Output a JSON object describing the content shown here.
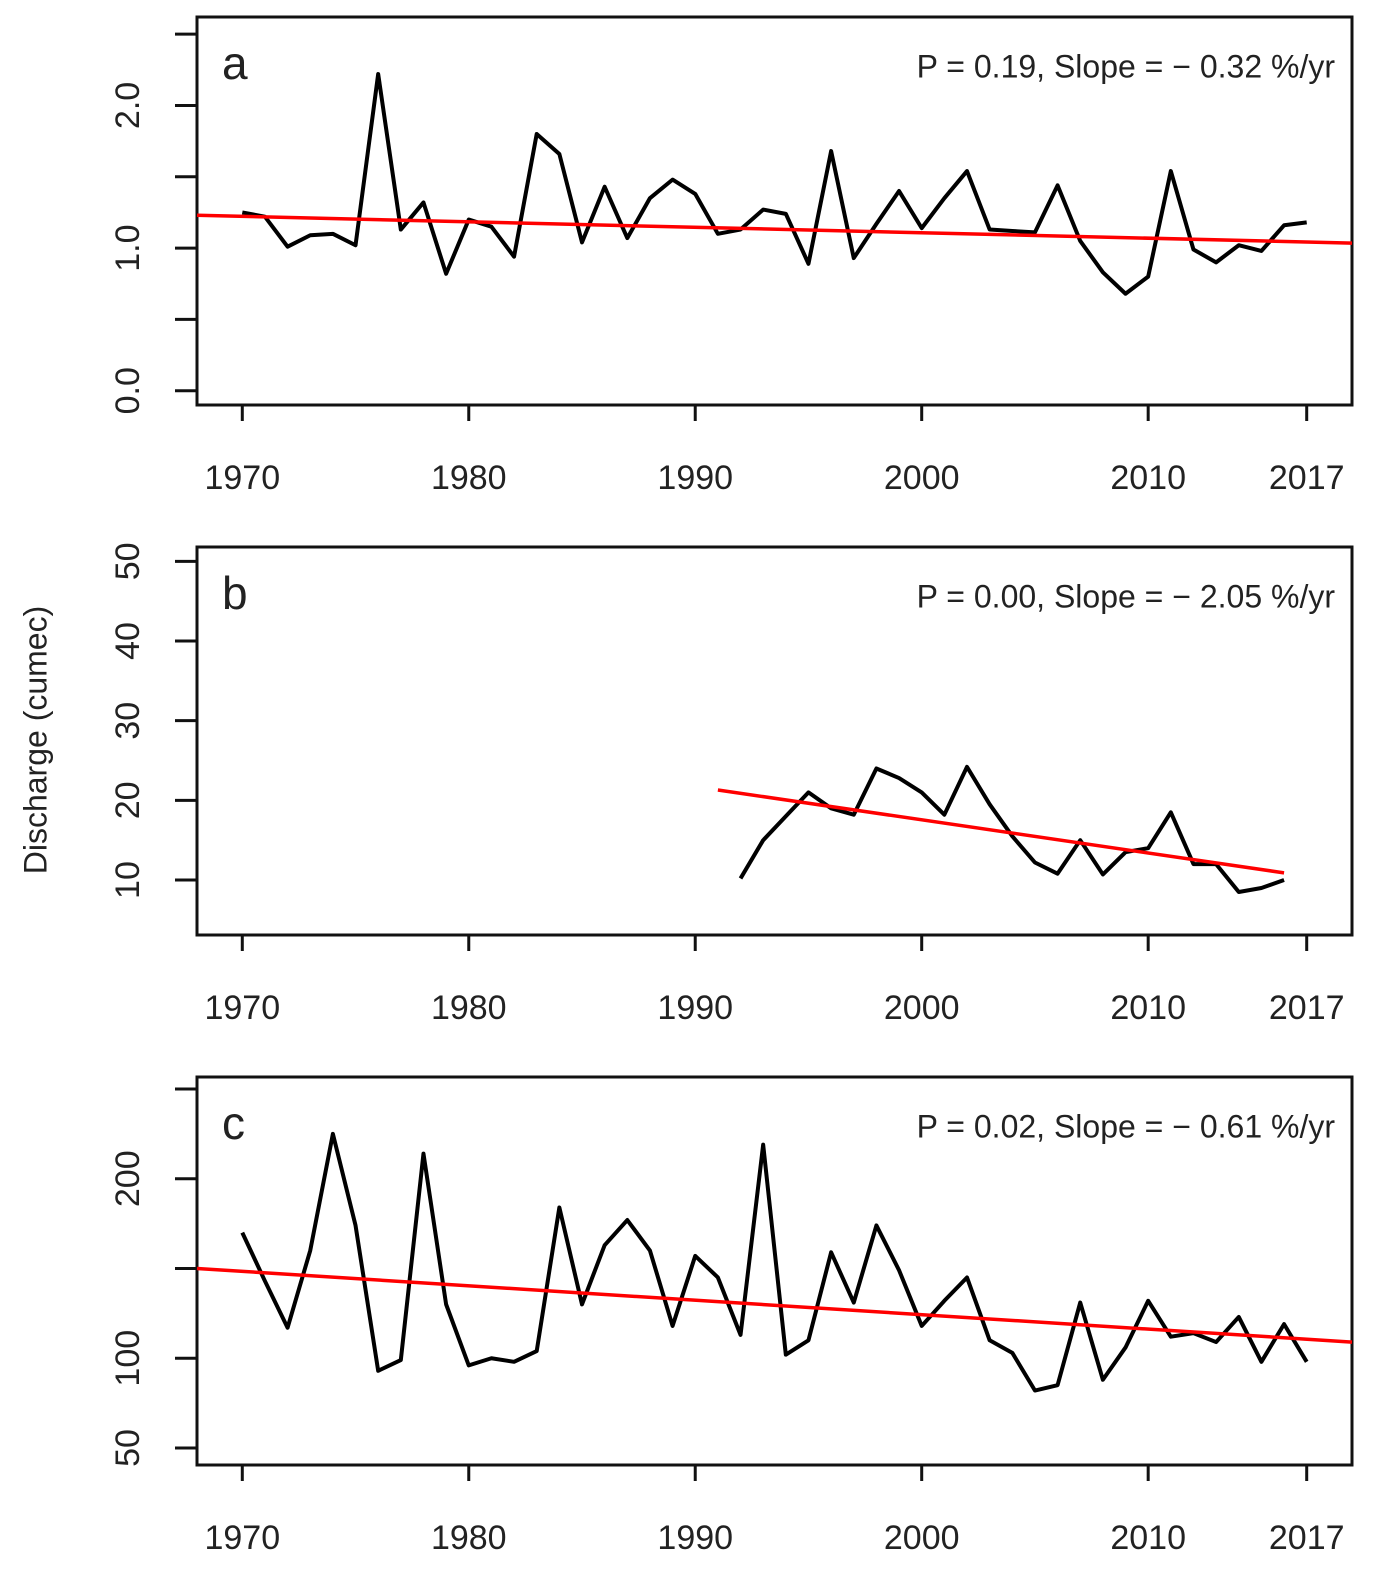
{
  "chart_data": [
    {
      "type": "line",
      "panel_label": "a",
      "annotation": "P = 0.19, Slope = − 0.32 %/yr",
      "x": [
        1970,
        1971,
        1972,
        1973,
        1974,
        1975,
        1976,
        1977,
        1978,
        1979,
        1980,
        1981,
        1982,
        1983,
        1984,
        1985,
        1986,
        1987,
        1988,
        1989,
        1990,
        1991,
        1992,
        1993,
        1994,
        1995,
        1996,
        1997,
        1998,
        1999,
        2000,
        2001,
        2002,
        2003,
        2004,
        2005,
        2006,
        2007,
        2008,
        2009,
        2010,
        2011,
        2012,
        2013,
        2014,
        2015,
        2016,
        2017
      ],
      "values": [
        1.25,
        1.22,
        1.01,
        1.09,
        1.1,
        1.02,
        2.22,
        1.13,
        1.32,
        0.82,
        1.2,
        1.15,
        0.94,
        1.8,
        1.66,
        1.04,
        1.43,
        1.07,
        1.35,
        1.48,
        1.38,
        1.1,
        1.13,
        1.27,
        1.24,
        0.89,
        1.68,
        0.93,
        1.17,
        1.4,
        1.14,
        1.35,
        1.54,
        1.13,
        1.12,
        1.11,
        1.44,
        1.05,
        0.83,
        0.68,
        0.8,
        1.54,
        0.99,
        0.9,
        1.02,
        0.98,
        1.16,
        1.18
      ],
      "color": "#000000",
      "trend": {
        "color": "#ff0000",
        "x": [
          1968,
          2019
        ],
        "values": [
          1.23,
          1.035
        ]
      },
      "xlim": [
        1968,
        2019
      ],
      "xticks": [
        1970,
        1980,
        1990,
        2000,
        2010,
        2017
      ],
      "ylim": [
        -0.1,
        2.62
      ],
      "yticks": [
        {
          "value": 0,
          "label": "0.0"
        },
        {
          "value": 1,
          "label": "1.0"
        },
        {
          "value": 2,
          "label": "2.0"
        }
      ],
      "yminor_ticks": [
        0.5,
        1.5,
        2.5
      ]
    },
    {
      "type": "line",
      "panel_label": "b",
      "annotation": "P = 0.00, Slope = − 2.05 %/yr",
      "ylabel": "Discharge (cumec)",
      "x": [
        1992,
        1993,
        1994,
        1995,
        1996,
        1997,
        1998,
        1999,
        2000,
        2001,
        2002,
        2003,
        2004,
        2005,
        2006,
        2007,
        2008,
        2009,
        2010,
        2011,
        2012,
        2013,
        2014,
        2015,
        2016
      ],
      "values": [
        10.2,
        15.0,
        18.0,
        21.0,
        19.0,
        18.2,
        24.0,
        22.8,
        21.0,
        18.2,
        24.2,
        19.5,
        15.5,
        12.2,
        10.8,
        15.0,
        10.7,
        13.5,
        14.0,
        18.5,
        12.0,
        12.0,
        8.5,
        9.0,
        10.0
      ],
      "color": "#000000",
      "trend": {
        "color": "#ff0000",
        "x": [
          1991,
          2016
        ],
        "values": [
          21.3,
          10.9
        ]
      },
      "xlim": [
        1968,
        2019
      ],
      "xticks": [
        1970,
        1980,
        1990,
        2000,
        2010,
        2017
      ],
      "ylim": [
        3.1,
        51.8
      ],
      "yticks": [
        10,
        20,
        30,
        40,
        50
      ],
      "yminor_ticks": []
    },
    {
      "type": "line",
      "panel_label": "c",
      "annotation": "P = 0.02, Slope = − 0.61 %/yr",
      "x": [
        1970,
        1971,
        1972,
        1973,
        1974,
        1975,
        1976,
        1977,
        1978,
        1979,
        1980,
        1981,
        1982,
        1983,
        1984,
        1985,
        1986,
        1987,
        1988,
        1989,
        1990,
        1991,
        1992,
        1993,
        1994,
        1995,
        1996,
        1997,
        1998,
        1999,
        2000,
        2001,
        2002,
        2003,
        2004,
        2005,
        2006,
        2007,
        2008,
        2009,
        2010,
        2011,
        2012,
        2013,
        2014,
        2015,
        2016,
        2017
      ],
      "values": [
        170,
        143,
        117,
        160,
        225,
        174,
        93,
        99,
        214,
        130,
        96,
        100,
        98,
        104,
        184,
        130,
        163,
        177,
        160,
        118,
        157,
        145,
        113,
        219,
        102,
        110,
        159,
        131,
        174,
        149,
        118,
        132,
        145,
        110,
        103,
        82,
        85,
        131,
        88,
        106,
        132,
        112,
        114,
        109,
        123,
        98,
        119,
        98
      ],
      "color": "#000000",
      "trend": {
        "color": "#ff0000",
        "x": [
          1968,
          2019
        ],
        "values": [
          150,
          109
        ]
      },
      "xlim": [
        1968,
        2019
      ],
      "xticks": [
        1970,
        1980,
        1990,
        2000,
        2010,
        2017
      ],
      "ylim": [
        40.5,
        256.7
      ],
      "yticks": [
        50,
        100,
        200
      ],
      "yminor_ticks": [
        150,
        250
      ]
    }
  ]
}
